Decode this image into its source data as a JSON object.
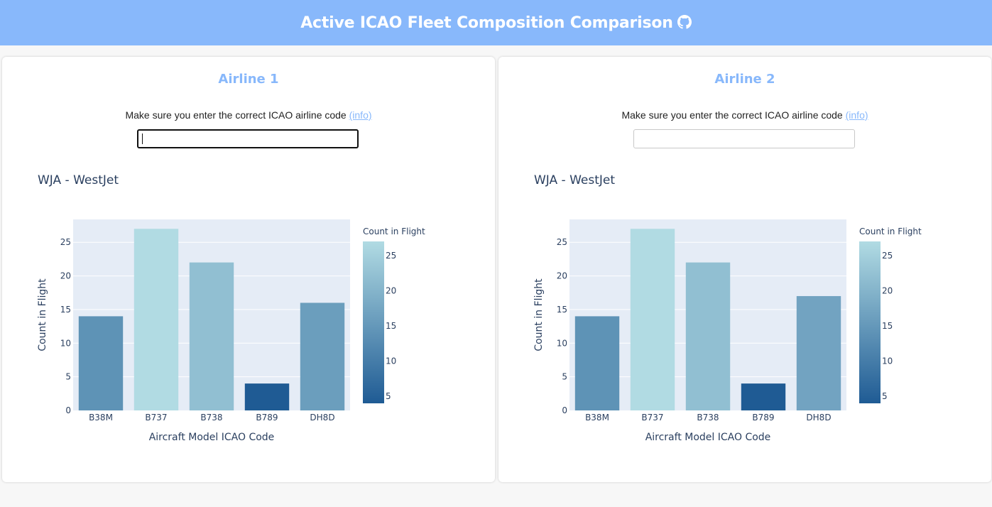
{
  "header": {
    "title": "Active ICAO Fleet Composition Comparison",
    "icon": "github-icon"
  },
  "panels": [
    {
      "title": "Airline 1",
      "hint_text": "Make sure you enter the correct ICAO airline code",
      "hint_link": "(info)",
      "input": {
        "value": "",
        "placeholder": "",
        "focused": true
      }
    },
    {
      "title": "Airline 2",
      "hint_text": "Make sure you enter the correct ICAO airline code",
      "hint_link": "(info)",
      "input": {
        "value": "",
        "placeholder": "",
        "focused": false
      }
    }
  ],
  "colors": {
    "accent": "#88b8fb",
    "plot_bg": "#e5ecf6",
    "colorscale": [
      "#1f5b94",
      "#b1dbe3"
    ]
  },
  "chart_data": [
    {
      "type": "bar",
      "title": "WJA - WestJet",
      "categories": [
        "B38M",
        "B737",
        "B738",
        "B789",
        "DH8D"
      ],
      "values": [
        14,
        27,
        22,
        4,
        16
      ],
      "xlabel": "Aircraft Model ICAO Code",
      "ylabel": "Count in Flight",
      "ylim": [
        0,
        28.4
      ],
      "yticks": [
        0,
        5,
        10,
        15,
        20,
        25
      ],
      "colorbar": {
        "title": "Count in Flight",
        "range": [
          4,
          27
        ],
        "ticks": [
          5,
          10,
          15,
          20,
          25
        ]
      },
      "grid": true,
      "legend": "right"
    },
    {
      "type": "bar",
      "title": "WJA - WestJet",
      "categories": [
        "B38M",
        "B737",
        "B738",
        "B789",
        "DH8D"
      ],
      "values": [
        14,
        27,
        22,
        4,
        17
      ],
      "xlabel": "Aircraft Model ICAO Code",
      "ylabel": "Count in Flight",
      "ylim": [
        0,
        28.4
      ],
      "yticks": [
        0,
        5,
        10,
        15,
        20,
        25
      ],
      "colorbar": {
        "title": "Count in Flight",
        "range": [
          4,
          27
        ],
        "ticks": [
          5,
          10,
          15,
          20,
          25
        ]
      },
      "grid": true,
      "legend": "right"
    }
  ]
}
